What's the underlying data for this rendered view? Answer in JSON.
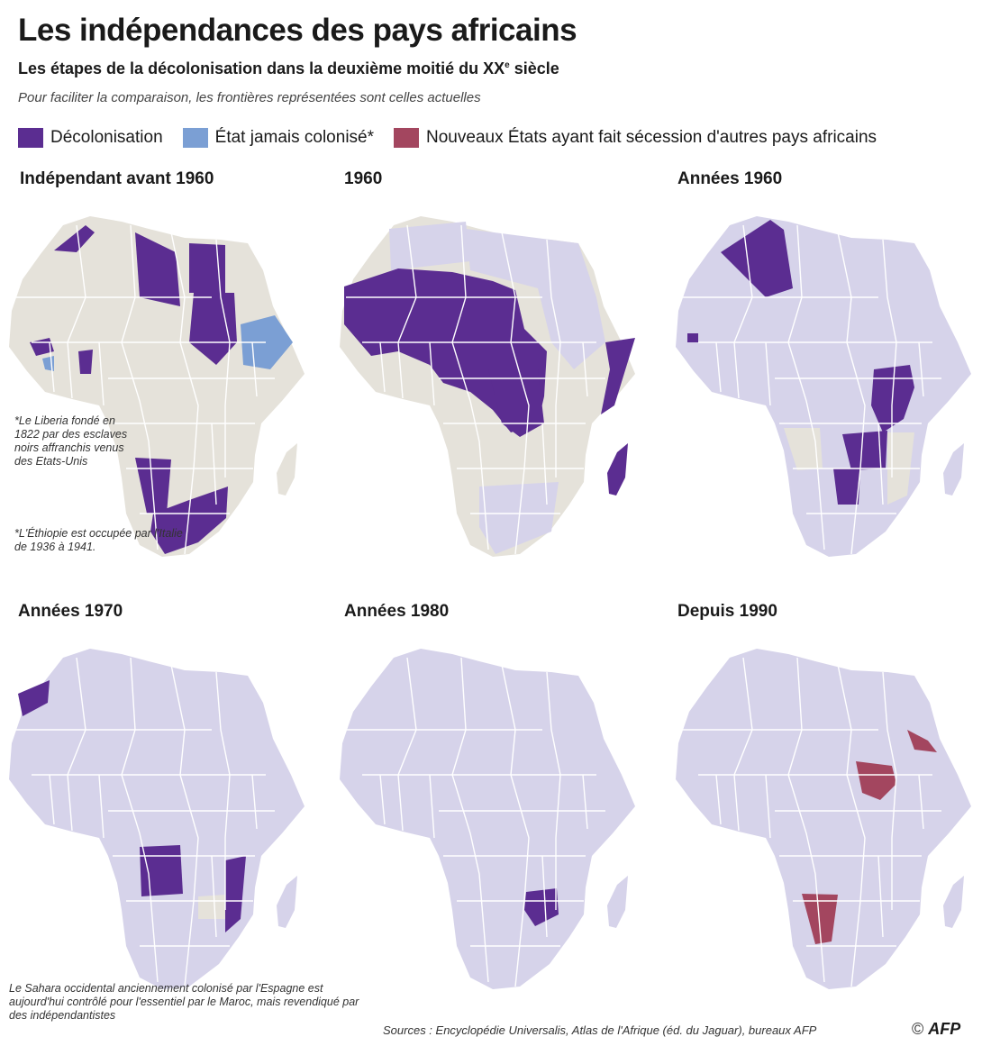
{
  "header": {
    "title": "Les indépendances des pays africains",
    "subtitle": "Les étapes de la décolonisation dans la deuxième moitié du XX",
    "subtitle_sup": "e",
    "subtitle_end": " siècle",
    "note": "Pour faciliter la comparaison, les frontières représentées sont celles actuelles"
  },
  "colors": {
    "decolonisation": "#5b2d91",
    "never_colonised": "#7b9fd4",
    "secession": "#a3465f",
    "independent": "#d6d3ea",
    "colonial": "#e5e2da",
    "border": "#ffffff"
  },
  "legend": [
    {
      "label": "Décolonisation",
      "color": "#5b2d91"
    },
    {
      "label": "État jamais colonisé*",
      "color": "#7b9fd4"
    },
    {
      "label": "Nouveaux États ayant fait sécession d'autres pays africains",
      "color": "#a3465f"
    }
  ],
  "panels": [
    {
      "title": "Indépendant avant 1960"
    },
    {
      "title": "1960"
    },
    {
      "title": "Années 1960"
    },
    {
      "title": "Années 1970"
    },
    {
      "title": "Années 1980"
    },
    {
      "title": "Depuis 1990"
    }
  ],
  "notes": {
    "liberia": "*Le Liberia fondé en 1822 par des esclaves noirs affranchis venus des Etats-Unis",
    "ethiopie": "*L'Éthiopie est occupée par l'Italie de 1936 à 1941.",
    "sahara": "Le Sahara occidental anciennement colonisé par l'Espagne est aujourd'hui contrôlé pour l'essentiel par le Maroc, mais revendiqué par des indépendantistes"
  },
  "footer": {
    "sources": "Sources : Encyclopédie Universalis, Atlas de l'Afrique (éd. du Jaguar), bureaux AFP",
    "copyright": "©",
    "brand": "AFP"
  }
}
